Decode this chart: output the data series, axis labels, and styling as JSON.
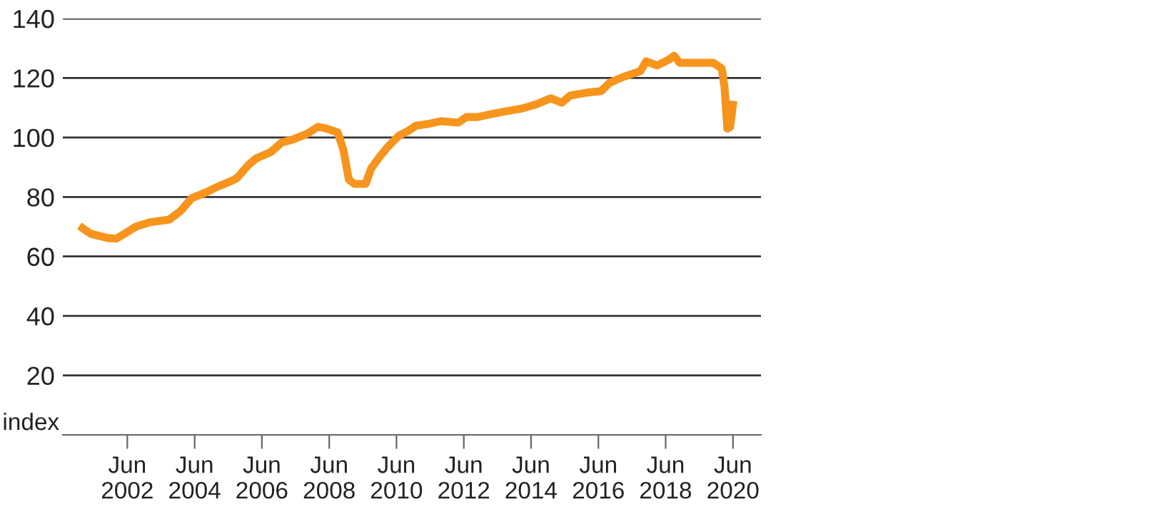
{
  "chart_data": {
    "type": "line",
    "ylabel": "index",
    "x": [
      "2001-02",
      "2001-05",
      "2001-11",
      "2002-02",
      "2002-05",
      "2002-09",
      "2003-02",
      "2003-09",
      "2004-01",
      "2004-05",
      "2004-10",
      "2005-02",
      "2005-07",
      "2005-09",
      "2006-01",
      "2006-04",
      "2006-09",
      "2007-01",
      "2007-05",
      "2007-10",
      "2008-02",
      "2008-05",
      "2008-09",
      "2008-11",
      "2009-01",
      "2009-03",
      "2009-07",
      "2009-09",
      "2009-12",
      "2010-03",
      "2010-07",
      "2010-10",
      "2011-01",
      "2011-05",
      "2011-10",
      "2012-04",
      "2012-07",
      "2012-11",
      "2013-04",
      "2013-09",
      "2014-03",
      "2014-08",
      "2015-01",
      "2015-05",
      "2015-08",
      "2016-02",
      "2016-07",
      "2016-10",
      "2017-03",
      "2017-09",
      "2017-11",
      "2018-03",
      "2018-07",
      "2018-09",
      "2018-11",
      "2019-05",
      "2019-09",
      "2019-11",
      "2020-02",
      "2020-03",
      "2020-04",
      "2020-05",
      "2020-06"
    ],
    "series": [
      {
        "color": "#f7941d",
        "values": [
          69.5,
          67.6,
          66.2,
          66,
          67.6,
          70,
          71.5,
          72.4,
          75.3,
          79.6,
          81.5,
          83.4,
          85.3,
          86.3,
          90.6,
          93,
          95,
          98.3,
          99.3,
          101.2,
          103.6,
          103,
          101.7,
          95.9,
          85.8,
          84.4,
          84.4,
          89.7,
          93.5,
          96.9,
          100.7,
          102.1,
          104,
          104.5,
          105.5,
          105,
          106.9,
          106.9,
          107.9,
          108.8,
          109.8,
          111.2,
          113.2,
          111.7,
          114.1,
          115.1,
          115.6,
          118.4,
          120.4,
          122.3,
          125.6,
          124.2,
          126.1,
          127.5,
          125.1,
          125.1,
          125.1,
          125.1,
          123.2,
          117,
          103,
          103.5,
          111
        ]
      }
    ],
    "xlim": [
      "2000-07",
      "2021-04"
    ],
    "xticks": [
      {
        "value": "2002-06",
        "label": "Jun\n2002"
      },
      {
        "value": "2004-06",
        "label": "Jun\n2004"
      },
      {
        "value": "2006-06",
        "label": "Jun\n2006"
      },
      {
        "value": "2008-06",
        "label": "Jun\n2008"
      },
      {
        "value": "2010-06",
        "label": "Jun\n2010"
      },
      {
        "value": "2012-06",
        "label": "Jun\n2012"
      },
      {
        "value": "2014-06",
        "label": "Jun\n2014"
      },
      {
        "value": "2016-06",
        "label": "Jun\n2016"
      },
      {
        "value": "2018-06",
        "label": "Jun\n2018"
      },
      {
        "value": "2020-06",
        "label": "Jun\n2020"
      }
    ],
    "ylim": [
      0,
      140
    ],
    "yticks": [
      20,
      40,
      60,
      80,
      100,
      120,
      140
    ],
    "grid": "y",
    "legend": false,
    "marker": "none",
    "line_style": "solid"
  }
}
